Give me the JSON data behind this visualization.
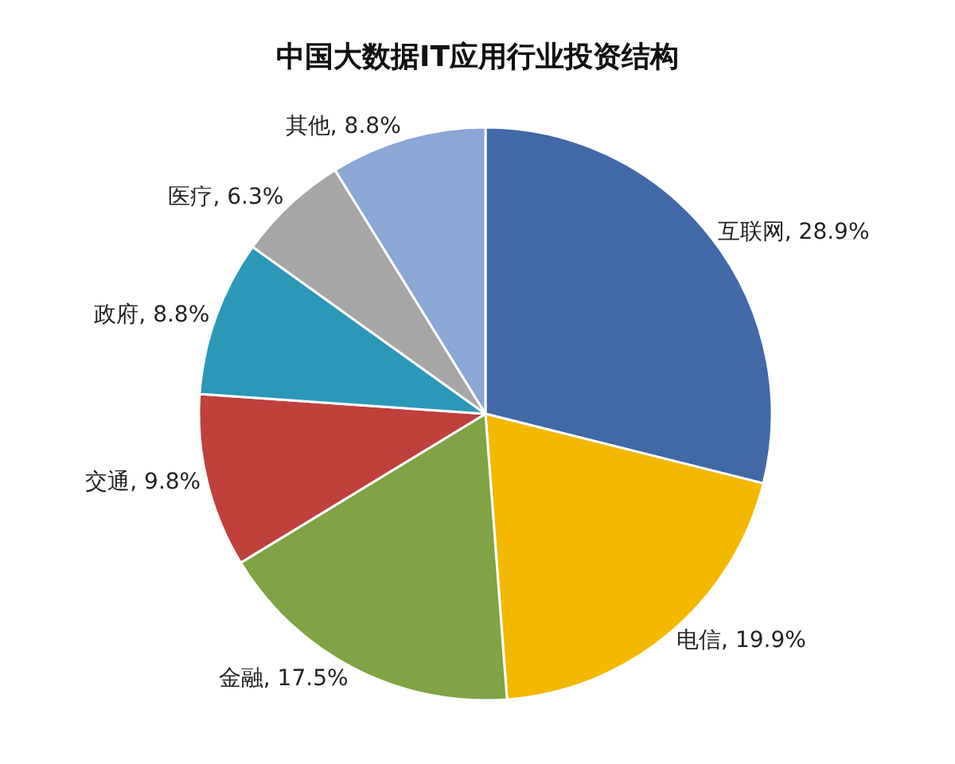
{
  "chart_data": {
    "type": "pie",
    "title": "中国大数据IT应用行业投资结构",
    "categories": [
      "互联网",
      "电信",
      "金融",
      "交通",
      "政府",
      "医疗",
      "其他"
    ],
    "values": [
      28.9,
      19.9,
      17.5,
      9.8,
      8.8,
      6.3,
      8.8
    ],
    "value_labels": [
      "28.9%",
      "19.9%",
      "17.5%",
      "9.8%",
      "8.8%",
      "6.3%",
      "8.8%"
    ],
    "colors": [
      "#4169a8",
      "#f5b800",
      "#7fa345",
      "#c0403c",
      "#2b98b8",
      "#a6a6a6",
      "#8aa7d6"
    ],
    "legend": false
  }
}
